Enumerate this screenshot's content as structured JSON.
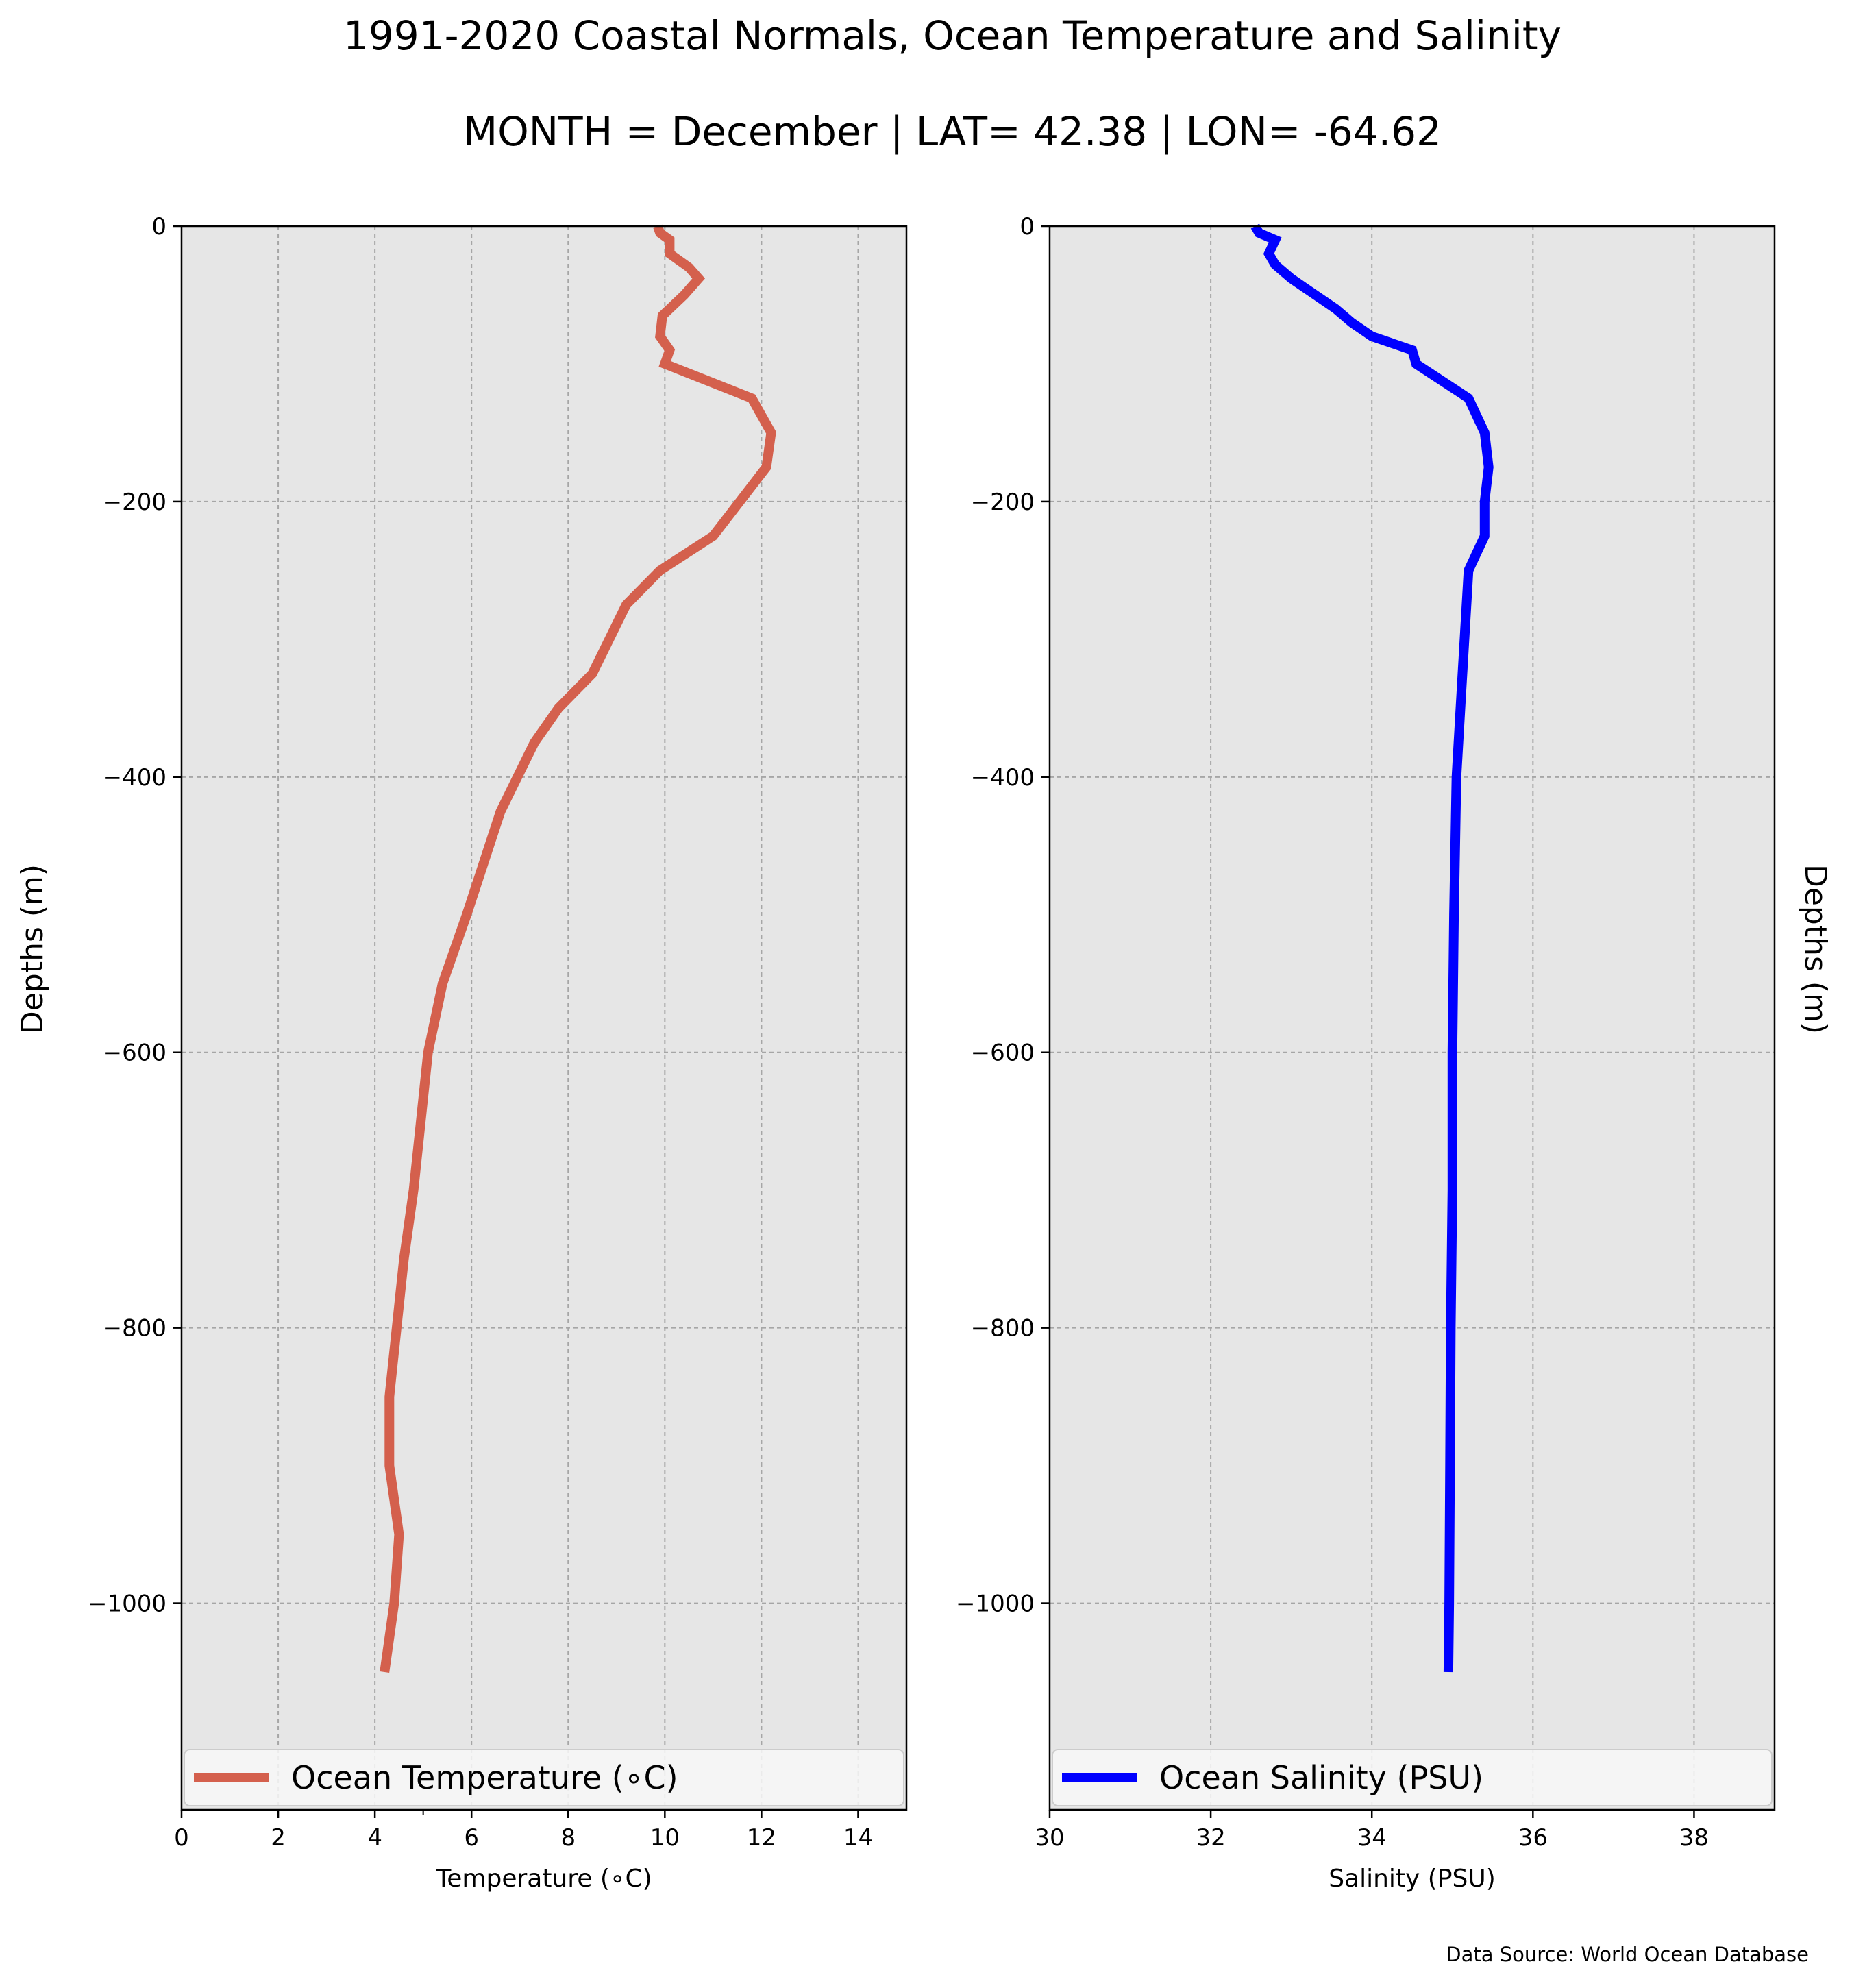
{
  "figure": {
    "title_line1": "1991-2020 Coastal Normals, Ocean Temperature and Salinity",
    "title_line2": "MONTH = December | LAT= 42.38 | LON= -64.62",
    "source": "Data Source: World Ocean Database",
    "background": "#ffffff",
    "axes_facecolor": "#e6e6e6"
  },
  "chart_data": [
    {
      "type": "line",
      "panel": "left",
      "xlabel": "Temperature ($^\\circ$C)",
      "xlabel_display": "Temperature (∘C)",
      "ylabel": "Depths (m)",
      "xlim": [
        0,
        15
      ],
      "ylim": [
        -1150,
        0
      ],
      "xticks": [
        0,
        2,
        4,
        6,
        8,
        10,
        12,
        14
      ],
      "xtick_labels": [
        "0",
        "2",
        "4",
        "6",
        "8",
        "10",
        "12",
        "14"
      ],
      "yticks": [
        0,
        -200,
        -400,
        -600,
        -800,
        -1000
      ],
      "ytick_labels": [
        "0",
        "−200",
        "−400",
        "−600",
        "−800",
        "−1000"
      ],
      "grid": true,
      "legend": "lower center",
      "series": [
        {
          "name": "Ocean Temperature (∘C)",
          "color": "#d4604d",
          "points": [
            [
              9.85,
              0
            ],
            [
              9.9,
              -5
            ],
            [
              10.1,
              -10
            ],
            [
              10.1,
              -20
            ],
            [
              10.5,
              -30
            ],
            [
              10.7,
              -38
            ],
            [
              10.4,
              -50
            ],
            [
              10.1,
              -60
            ],
            [
              9.95,
              -65
            ],
            [
              9.9,
              -80
            ],
            [
              10.1,
              -90
            ],
            [
              10.0,
              -100
            ],
            [
              11.8,
              -125
            ],
            [
              12.2,
              -150
            ],
            [
              12.1,
              -175
            ],
            [
              11.0,
              -225
            ],
            [
              9.9,
              -250
            ],
            [
              9.2,
              -275
            ],
            [
              8.5,
              -325
            ],
            [
              7.8,
              -350
            ],
            [
              7.3,
              -375
            ],
            [
              6.6,
              -425
            ],
            [
              5.9,
              -500
            ],
            [
              5.4,
              -550
            ],
            [
              5.1,
              -600
            ],
            [
              4.8,
              -700
            ],
            [
              4.6,
              -750
            ],
            [
              4.3,
              -850
            ],
            [
              4.3,
              -900
            ],
            [
              4.5,
              -950
            ],
            [
              4.4,
              -1000
            ],
            [
              4.2,
              -1050
            ]
          ]
        }
      ]
    },
    {
      "type": "line",
      "panel": "right",
      "xlabel": "Salinity (PSU)",
      "ylabel": "Depths (m)",
      "xlim": [
        30,
        39
      ],
      "ylim": [
        -1150,
        0
      ],
      "xticks": [
        30,
        32,
        34,
        36,
        38
      ],
      "xtick_labels": [
        "30",
        "32",
        "34",
        "36",
        "38"
      ],
      "yticks": [
        0,
        -200,
        -400,
        -600,
        -800,
        -1000
      ],
      "ytick_labels": [
        "0",
        "−200",
        "−400",
        "−600",
        "−800",
        "−1000"
      ],
      "grid": true,
      "legend": "lower center",
      "series": [
        {
          "name": "Ocean Salinity (PSU)",
          "color": "#0000ff",
          "points": [
            [
              32.55,
              0
            ],
            [
              32.6,
              -5
            ],
            [
              32.8,
              -10
            ],
            [
              32.72,
              -20
            ],
            [
              32.8,
              -28
            ],
            [
              33.0,
              -38
            ],
            [
              33.3,
              -50
            ],
            [
              33.55,
              -60
            ],
            [
              33.75,
              -70
            ],
            [
              34.0,
              -80
            ],
            [
              34.5,
              -90
            ],
            [
              34.55,
              -100
            ],
            [
              35.2,
              -125
            ],
            [
              35.4,
              -150
            ],
            [
              35.45,
              -175
            ],
            [
              35.4,
              -200
            ],
            [
              35.4,
              -225
            ],
            [
              35.2,
              -250
            ],
            [
              35.15,
              -300
            ],
            [
              35.1,
              -350
            ],
            [
              35.05,
              -400
            ],
            [
              35.02,
              -500
            ],
            [
              35.0,
              -600
            ],
            [
              35.0,
              -700
            ],
            [
              34.98,
              -800
            ],
            [
              34.97,
              -900
            ],
            [
              34.96,
              -1000
            ],
            [
              34.95,
              -1050
            ]
          ]
        }
      ]
    }
  ]
}
